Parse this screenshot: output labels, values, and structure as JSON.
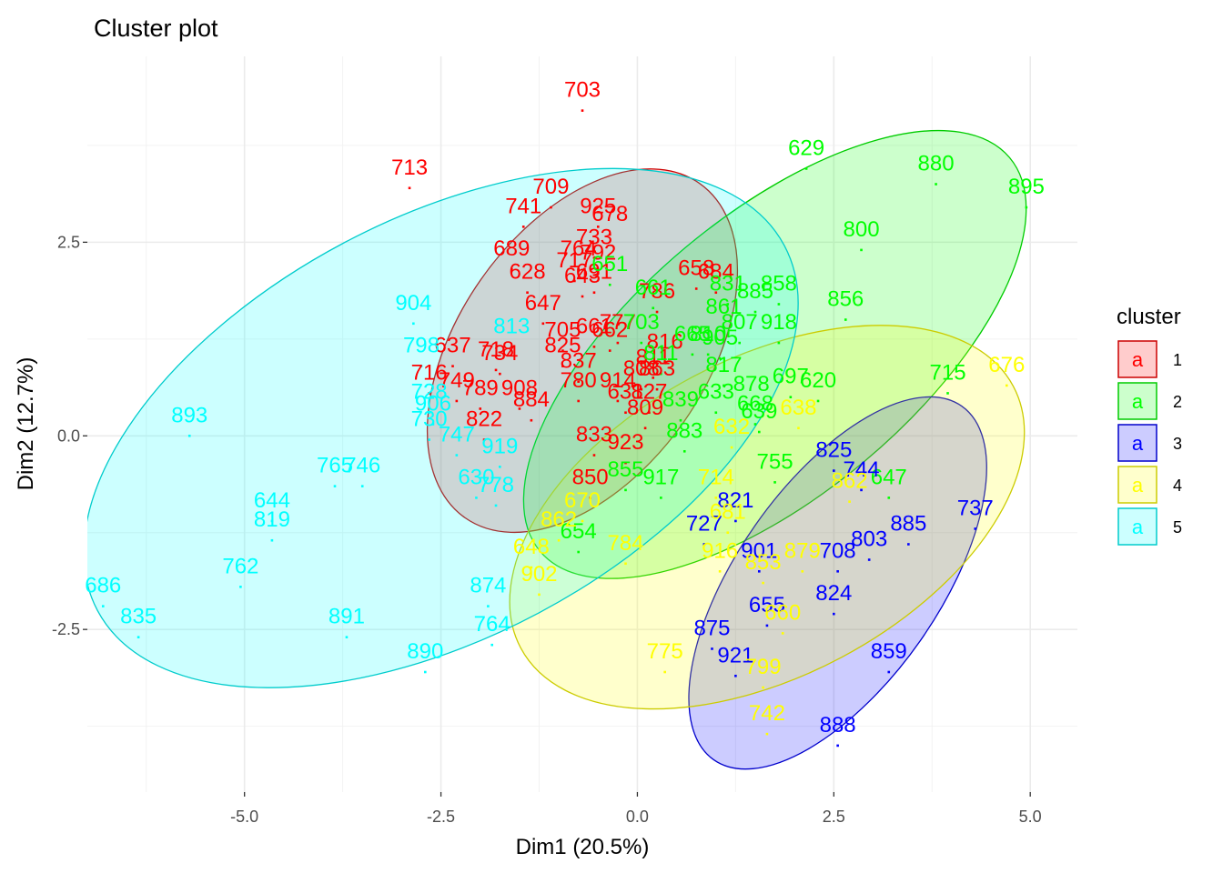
{
  "chart_data": {
    "type": "scatter",
    "title": "Cluster plot",
    "xlabel": "Dim1 (20.5%)",
    "ylabel": "Dim2 (12.7%)",
    "xlim": [
      -7.0,
      5.6
    ],
    "ylim": [
      -4.6,
      4.9
    ],
    "xticks": [
      -5.0,
      -2.5,
      0.0,
      2.5,
      5.0
    ],
    "xtick_labels": [
      "-5.0",
      "-2.5",
      "0.0",
      "2.5",
      "5.0"
    ],
    "yticks": [
      -2.5,
      0.0,
      2.5
    ],
    "ytick_labels": [
      "-2.5",
      "0.0",
      "2.5"
    ],
    "grid": true,
    "legend": {
      "title": "cluster",
      "position": "right",
      "glyph": "a",
      "entries": [
        {
          "label": "1",
          "color": "#ff0000"
        },
        {
          "label": "2",
          "color": "#00ff00"
        },
        {
          "label": "3",
          "color": "#0000ff"
        },
        {
          "label": "4",
          "color": "#ffff00"
        },
        {
          "label": "5",
          "color": "#00ffff"
        }
      ]
    },
    "ellipses": [
      {
        "cluster": "1",
        "cx": -0.7,
        "cy": 1.1,
        "rx": 2.6,
        "ry": 1.6,
        "angle": 55
      },
      {
        "cluster": "2",
        "cx": 1.75,
        "cy": 1.05,
        "rx": 3.9,
        "ry": 1.8,
        "angle": 40
      },
      {
        "cluster": "3",
        "cx": 2.55,
        "cy": -1.9,
        "rx": 2.75,
        "ry": 1.3,
        "angle": 55
      },
      {
        "cluster": "4",
        "cx": 1.65,
        "cy": -1.05,
        "rx": 3.55,
        "ry": 2.05,
        "angle": 28
      },
      {
        "cluster": "5",
        "cx": -2.5,
        "cy": 0.1,
        "rx": 4.95,
        "ry": 2.7,
        "angle": 28
      }
    ],
    "series": [
      {
        "name": "1",
        "points": [
          {
            "label": "703",
            "x": -0.7,
            "y": 4.2
          },
          {
            "label": "713",
            "x": -2.9,
            "y": 3.2
          },
          {
            "label": "709",
            "x": -1.1,
            "y": 2.95
          },
          {
            "label": "741",
            "x": -1.45,
            "y": 2.7
          },
          {
            "label": "925",
            "x": -0.5,
            "y": 2.7
          },
          {
            "label": "678",
            "x": -0.35,
            "y": 2.6
          },
          {
            "label": "733",
            "x": -0.55,
            "y": 2.3
          },
          {
            "label": "689",
            "x": -1.6,
            "y": 2.15
          },
          {
            "label": "764",
            "x": -0.75,
            "y": 2.15
          },
          {
            "label": "792",
            "x": -0.5,
            "y": 2.1
          },
          {
            "label": "717",
            "x": -0.8,
            "y": 2.0
          },
          {
            "label": "628",
            "x": -1.4,
            "y": 1.85
          },
          {
            "label": "691",
            "x": -0.55,
            "y": 1.85
          },
          {
            "label": "643",
            "x": -0.7,
            "y": 1.8
          },
          {
            "label": "658",
            "x": 0.75,
            "y": 1.9
          },
          {
            "label": "684",
            "x": 1.0,
            "y": 1.85
          },
          {
            "label": "786",
            "x": 0.25,
            "y": 1.6
          },
          {
            "label": "647",
            "x": -1.2,
            "y": 1.45
          },
          {
            "label": "777",
            "x": -0.25,
            "y": 1.2
          },
          {
            "label": "661",
            "x": -0.55,
            "y": 1.15
          },
          {
            "label": "705",
            "x": -0.95,
            "y": 1.1
          },
          {
            "label": "662",
            "x": -0.35,
            "y": 1.1
          },
          {
            "label": "825",
            "x": -0.95,
            "y": 0.9
          },
          {
            "label": "637",
            "x": -2.35,
            "y": 0.9
          },
          {
            "label": "718",
            "x": -1.8,
            "y": 0.85
          },
          {
            "label": "734",
            "x": -1.75,
            "y": 0.8
          },
          {
            "label": "816",
            "x": 0.35,
            "y": 0.95
          },
          {
            "label": "811",
            "x": 0.2,
            "y": 0.75
          },
          {
            "label": "837",
            "x": -0.75,
            "y": 0.7
          },
          {
            "label": "808",
            "x": 0.05,
            "y": 0.6
          },
          {
            "label": "863",
            "x": 0.25,
            "y": 0.6
          },
          {
            "label": "716",
            "x": -2.65,
            "y": 0.55
          },
          {
            "label": "749",
            "x": -2.3,
            "y": 0.45
          },
          {
            "label": "780",
            "x": -0.75,
            "y": 0.45
          },
          {
            "label": "914",
            "x": -0.25,
            "y": 0.45
          },
          {
            "label": "789",
            "x": -2.0,
            "y": 0.35
          },
          {
            "label": "908",
            "x": -1.5,
            "y": 0.35
          },
          {
            "label": "631",
            "x": -0.15,
            "y": 0.3
          },
          {
            "label": "827",
            "x": 0.15,
            "y": 0.3
          },
          {
            "label": "884",
            "x": -1.35,
            "y": 0.2
          },
          {
            "label": "809",
            "x": 0.1,
            "y": 0.1
          },
          {
            "label": "822",
            "x": -1.95,
            "y": -0.05
          },
          {
            "label": "833",
            "x": -0.55,
            "y": -0.25
          },
          {
            "label": "923",
            "x": -0.15,
            "y": -0.35
          },
          {
            "label": "850",
            "x": -0.6,
            "y": -0.8
          }
        ]
      },
      {
        "name": "2",
        "points": [
          {
            "label": "629",
            "x": 2.15,
            "y": 3.45
          },
          {
            "label": "880",
            "x": 3.8,
            "y": 3.25
          },
          {
            "label": "895",
            "x": 4.95,
            "y": 2.95
          },
          {
            "label": "800",
            "x": 2.85,
            "y": 2.4
          },
          {
            "label": "651",
            "x": -0.35,
            "y": 1.95
          },
          {
            "label": "661",
            "x": 0.2,
            "y": 1.65
          },
          {
            "label": "831",
            "x": 1.15,
            "y": 1.7
          },
          {
            "label": "858",
            "x": 1.8,
            "y": 1.7
          },
          {
            "label": "885",
            "x": 1.5,
            "y": 1.6
          },
          {
            "label": "856",
            "x": 2.65,
            "y": 1.5
          },
          {
            "label": "703",
            "x": 0.05,
            "y": 1.2
          },
          {
            "label": "861",
            "x": 1.1,
            "y": 1.4
          },
          {
            "label": "807",
            "x": 1.3,
            "y": 1.2
          },
          {
            "label": "918",
            "x": 1.8,
            "y": 1.2
          },
          {
            "label": "665",
            "x": 0.7,
            "y": 1.05
          },
          {
            "label": "810",
            "x": 0.9,
            "y": 1.05
          },
          {
            "label": "905",
            "x": 1.05,
            "y": 1.0
          },
          {
            "label": "811",
            "x": 0.3,
            "y": 0.8
          },
          {
            "label": "817",
            "x": 1.1,
            "y": 0.65
          },
          {
            "label": "715",
            "x": 3.95,
            "y": 0.55
          },
          {
            "label": "697",
            "x": 1.95,
            "y": 0.5
          },
          {
            "label": "878",
            "x": 1.45,
            "y": 0.4
          },
          {
            "label": "620",
            "x": 2.3,
            "y": 0.45
          },
          {
            "label": "633",
            "x": 1.0,
            "y": 0.3
          },
          {
            "label": "839",
            "x": 0.55,
            "y": 0.2
          },
          {
            "label": "668",
            "x": 1.5,
            "y": 0.15
          },
          {
            "label": "639",
            "x": 1.55,
            "y": 0.05
          },
          {
            "label": "883",
            "x": 0.6,
            "y": -0.2
          },
          {
            "label": "755",
            "x": 1.75,
            "y": -0.6
          },
          {
            "label": "855",
            "x": -0.15,
            "y": -0.7
          },
          {
            "label": "917",
            "x": 0.3,
            "y": -0.8
          },
          {
            "label": "647",
            "x": 3.2,
            "y": -0.8
          },
          {
            "label": "654",
            "x": -0.75,
            "y": -1.5
          }
        ]
      },
      {
        "name": "3",
        "points": [
          {
            "label": "825",
            "x": 2.5,
            "y": -0.45
          },
          {
            "label": "744",
            "x": 2.85,
            "y": -0.7
          },
          {
            "label": "737",
            "x": 4.3,
            "y": -1.2
          },
          {
            "label": "821",
            "x": 1.25,
            "y": -1.1
          },
          {
            "label": "885",
            "x": 3.45,
            "y": -1.4
          },
          {
            "label": "727",
            "x": 0.85,
            "y": -1.4
          },
          {
            "label": "803",
            "x": 2.95,
            "y": -1.6
          },
          {
            "label": "901",
            "x": 1.55,
            "y": -1.75
          },
          {
            "label": "708",
            "x": 2.55,
            "y": -1.75
          },
          {
            "label": "824",
            "x": 2.5,
            "y": -2.3
          },
          {
            "label": "655",
            "x": 1.65,
            "y": -2.45
          },
          {
            "label": "875",
            "x": 0.95,
            "y": -2.75
          },
          {
            "label": "921",
            "x": 1.25,
            "y": -3.1
          },
          {
            "label": "859",
            "x": 3.2,
            "y": -3.05
          },
          {
            "label": "888",
            "x": 2.55,
            "y": -4.0
          }
        ]
      },
      {
        "name": "4",
        "points": [
          {
            "label": "676",
            "x": 4.7,
            "y": 0.65
          },
          {
            "label": "638",
            "x": 2.05,
            "y": 0.1
          },
          {
            "label": "632",
            "x": 1.2,
            "y": -0.15
          },
          {
            "label": "714",
            "x": 1.0,
            "y": -0.8
          },
          {
            "label": "862",
            "x": 2.7,
            "y": -0.85
          },
          {
            "label": "670",
            "x": -0.7,
            "y": -1.1
          },
          {
            "label": "862",
            "x": -1.0,
            "y": -1.35
          },
          {
            "label": "681",
            "x": 1.15,
            "y": -1.25
          },
          {
            "label": "784",
            "x": -0.15,
            "y": -1.65
          },
          {
            "label": "648",
            "x": -1.35,
            "y": -1.7
          },
          {
            "label": "916",
            "x": 1.05,
            "y": -1.75
          },
          {
            "label": "853",
            "x": 1.6,
            "y": -1.9
          },
          {
            "label": "879",
            "x": 2.1,
            "y": -1.75
          },
          {
            "label": "902",
            "x": -1.25,
            "y": -2.05
          },
          {
            "label": "660",
            "x": 1.85,
            "y": -2.55
          },
          {
            "label": "775",
            "x": 0.35,
            "y": -3.05
          },
          {
            "label": "799",
            "x": 1.6,
            "y": -3.25
          },
          {
            "label": "742",
            "x": 1.65,
            "y": -3.85
          }
        ]
      },
      {
        "name": "5",
        "points": [
          {
            "label": "904",
            "x": -2.85,
            "y": 1.45
          },
          {
            "label": "813",
            "x": -1.6,
            "y": 1.15
          },
          {
            "label": "798",
            "x": -2.75,
            "y": 0.9
          },
          {
            "label": "728",
            "x": -2.65,
            "y": 0.3
          },
          {
            "label": "906",
            "x": -2.6,
            "y": 0.15
          },
          {
            "label": "893",
            "x": -5.7,
            "y": 0.0
          },
          {
            "label": "730",
            "x": -2.65,
            "y": -0.05
          },
          {
            "label": "747",
            "x": -2.3,
            "y": -0.25
          },
          {
            "label": "919",
            "x": -1.75,
            "y": -0.4
          },
          {
            "label": "765",
            "x": -3.85,
            "y": -0.65
          },
          {
            "label": "746",
            "x": -3.5,
            "y": -0.65
          },
          {
            "label": "630",
            "x": -2.05,
            "y": -0.8
          },
          {
            "label": "778",
            "x": -1.8,
            "y": -0.9
          },
          {
            "label": "644",
            "x": -4.65,
            "y": -1.1
          },
          {
            "label": "819",
            "x": -4.65,
            "y": -1.35
          },
          {
            "label": "762",
            "x": -5.05,
            "y": -1.95
          },
          {
            "label": "686",
            "x": -6.8,
            "y": -2.2
          },
          {
            "label": "874",
            "x": -1.9,
            "y": -2.2
          },
          {
            "label": "835",
            "x": -6.35,
            "y": -2.6
          },
          {
            "label": "891",
            "x": -3.7,
            "y": -2.6
          },
          {
            "label": "764",
            "x": -1.85,
            "y": -2.7
          },
          {
            "label": "890",
            "x": -2.7,
            "y": -3.05
          }
        ]
      }
    ]
  }
}
